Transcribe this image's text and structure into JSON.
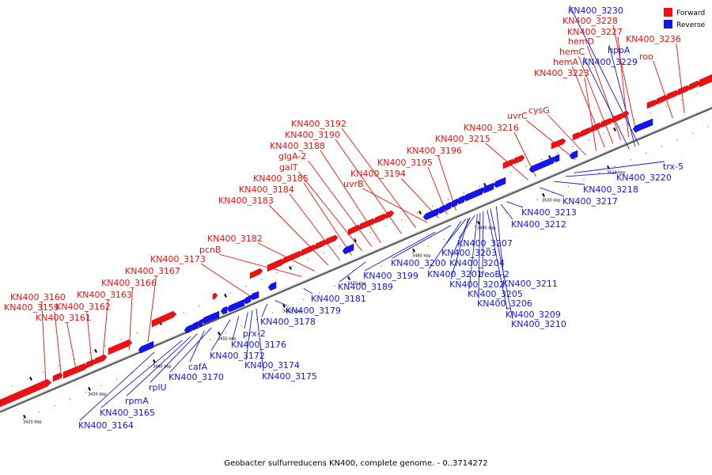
{
  "colors": {
    "forward": "#ee1111",
    "reverse": "#1414ee",
    "axis": "#555555"
  },
  "legend": {
    "forward_label": "Forward",
    "reverse_label": "Reverse"
  },
  "caption": "Geobacter sulfurreducens KN400, complete genome. - 0..3714272",
  "ticks": [
    {
      "label": "3420 kbp",
      "pos": 3420
    },
    {
      "label": "3430 kbp",
      "pos": 3430
    },
    {
      "label": "3440 kbp",
      "pos": 3440
    },
    {
      "label": "3450 kbp",
      "pos": 3450
    },
    {
      "label": "3460 kbp",
      "pos": 3460
    },
    {
      "label": "3470 kbp",
      "pos": 3470
    },
    {
      "label": "3480 kbp",
      "pos": 3480
    },
    {
      "label": "3490 kbp",
      "pos": 3490
    },
    {
      "label": "3500 kbp",
      "pos": 3500
    },
    {
      "label": "3510 kbp",
      "pos": 3510
    }
  ],
  "genes": {
    "forward": [
      {
        "name": "KN400_3160",
        "pos": 3423.2
      },
      {
        "name": "KN400_3159",
        "pos": 3425.6
      },
      {
        "name": "KN400_3161",
        "pos": 3427.9
      },
      {
        "name": "KN400_3162",
        "pos": 3430.3
      },
      {
        "name": "KN400_3163",
        "pos": 3431.9
      },
      {
        "name": "KN400_3166",
        "pos": 3436.0
      },
      {
        "name": "KN400_3167",
        "pos": 3438.9
      },
      {
        "name": "KN400_3173",
        "pos": 3455.0
      },
      {
        "name": "pcnB",
        "pos": 3462.6
      },
      {
        "name": "KN400_3182",
        "pos": 3464.6
      },
      {
        "name": "KN400_3183",
        "pos": 3466.7
      },
      {
        "name": "KN400_3184",
        "pos": 3468.5
      },
      {
        "name": "KN400_3185",
        "pos": 3470.3
      },
      {
        "name": "galT",
        "pos": 3471.9
      },
      {
        "name": "glgA-2",
        "pos": 3473.4
      },
      {
        "name": "KN400_3188",
        "pos": 3474.8
      },
      {
        "name": "KN400_3190",
        "pos": 3478.0
      },
      {
        "name": "KN400_3192",
        "pos": 3480.2
      },
      {
        "name": "uvrB",
        "pos": 3482.0
      },
      {
        "name": "KN400_3194",
        "pos": 3483.7
      },
      {
        "name": "KN400_3195",
        "pos": 3485.0
      },
      {
        "name": "KN400_3196",
        "pos": 3486.4
      },
      {
        "name": "KN400_3215",
        "pos": 3497.5
      },
      {
        "name": "KN400_3216",
        "pos": 3498.7
      },
      {
        "name": "uvrC",
        "pos": 3504.8
      },
      {
        "name": "cysG",
        "pos": 3506.4
      },
      {
        "name": "KN400_3223",
        "pos": 3508.0
      },
      {
        "name": "hemA",
        "pos": 3509.3
      },
      {
        "name": "hemC",
        "pos": 3510.6
      },
      {
        "name": "hemD",
        "pos": 3511.8
      },
      {
        "name": "KN400_3227",
        "pos": 3513.0
      },
      {
        "name": "KN400_3228",
        "pos": 3514.2
      },
      {
        "name": "roo",
        "pos": 3519.8
      },
      {
        "name": "KN400_3236",
        "pos": 3521.6
      }
    ],
    "reverse": [
      {
        "name": "KN400_3164",
        "pos": 3439.9
      },
      {
        "name": "KN400_3165",
        "pos": 3444.2
      },
      {
        "name": "rpmA",
        "pos": 3445.5
      },
      {
        "name": "rplU",
        "pos": 3446.5
      },
      {
        "name": "cafA",
        "pos": 3447.6
      },
      {
        "name": "KN400_3170",
        "pos": 3448.7
      },
      {
        "name": "KN400_3172",
        "pos": 3451.6
      },
      {
        "name": "KN400_3176",
        "pos": 3452.9
      },
      {
        "name": "prx-2",
        "pos": 3454.3
      },
      {
        "name": "KN400_3174",
        "pos": 3455.0
      },
      {
        "name": "KN400_3175",
        "pos": 3455.6
      },
      {
        "name": "KN400_3178",
        "pos": 3457.3
      },
      {
        "name": "KN400_3179",
        "pos": 3458.5
      },
      {
        "name": "KN400_3181",
        "pos": 3462.9
      },
      {
        "name": "KN400_3189",
        "pos": 3472.5
      },
      {
        "name": "KN400_3199",
        "pos": 3483.2
      },
      {
        "name": "KN400_3200",
        "pos": 3485.6
      },
      {
        "name": "KN400_3201",
        "pos": 3487.2
      },
      {
        "name": "KN400_3203",
        "pos": 3487.9
      },
      {
        "name": "KN400_3202",
        "pos": 3488.3
      },
      {
        "name": "KN400_3204",
        "pos": 3488.6
      },
      {
        "name": "KN400_3207",
        "pos": 3489.3
      },
      {
        "name": "KN400_3205",
        "pos": 3489.7
      },
      {
        "name": "KN400_3206",
        "pos": 3490.1
      },
      {
        "name": "feoB-2",
        "pos": 3490.6
      },
      {
        "name": "KN400_3209",
        "pos": 3491.2
      },
      {
        "name": "KN400_3210",
        "pos": 3491.7
      },
      {
        "name": "KN400_3211",
        "pos": 3492.6
      },
      {
        "name": "KN400_3212",
        "pos": 3493.3
      },
      {
        "name": "KN400_3213",
        "pos": 3494.2
      },
      {
        "name": "KN400_3217",
        "pos": 3499.3
      },
      {
        "name": "KN400_3218",
        "pos": 3501.5
      },
      {
        "name": "KN400_3220",
        "pos": 3503.3
      },
      {
        "name": "trx-5",
        "pos": 3504.6
      },
      {
        "name": "KN400_3229",
        "pos": 3513.1
      },
      {
        "name": "hppA",
        "pos": 3514.0
      },
      {
        "name": "KN400_3230",
        "pos": 3514.6
      }
    ]
  }
}
